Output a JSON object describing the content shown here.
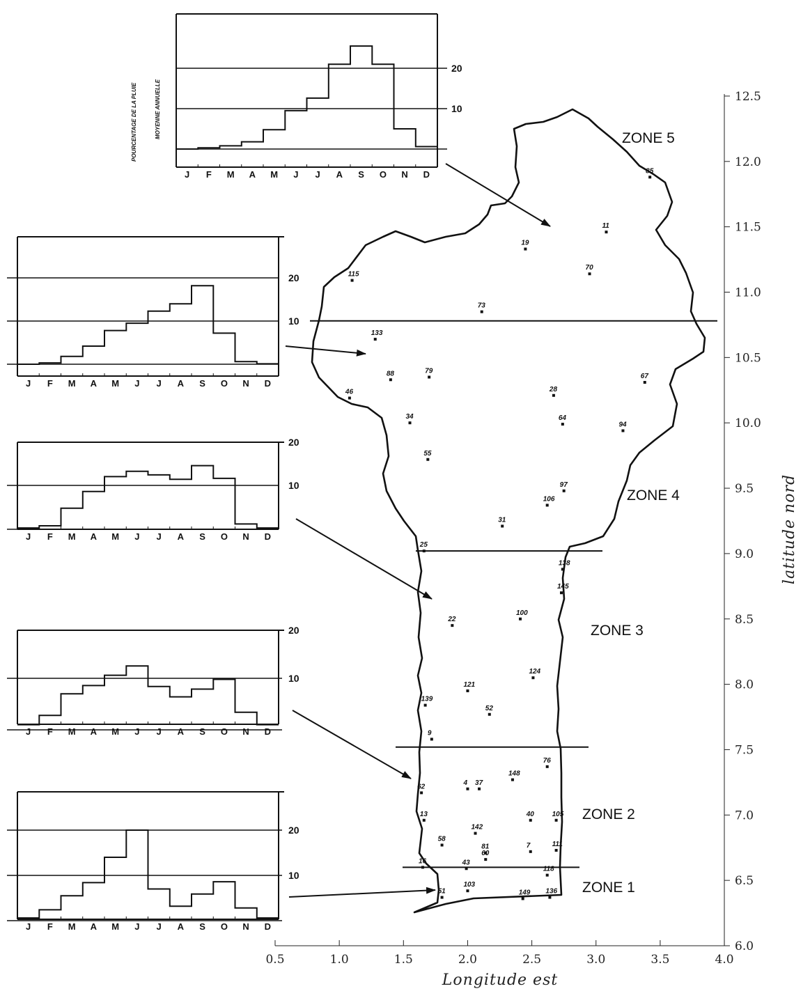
{
  "axes": {
    "x_label": "Longitude est",
    "y_label": "latitude nord",
    "x_ticks": [
      "0.5",
      "1.0",
      "1.5",
      "2.0",
      "2.5",
      "3.0",
      "3.5",
      "4.0"
    ],
    "y_ticks": [
      "6.0",
      "6.5",
      "7.0",
      "7.5",
      "8.0",
      "8.5",
      "9.0",
      "9.5",
      "10.0",
      "10.5",
      "11.0",
      "11.5",
      "12.0",
      "12.5"
    ]
  },
  "zones": [
    {
      "label": "ZONE 5"
    },
    {
      "label": "ZONE 4"
    },
    {
      "label": "ZONE 3"
    },
    {
      "label": "ZONE 2"
    },
    {
      "label": "ZONE 1"
    }
  ],
  "zone_boundaries_lat": [
    10.78,
    9.02,
    7.52,
    6.6
  ],
  "stations": [
    {
      "id": "85",
      "lon": 3.42,
      "lat": 11.88
    },
    {
      "id": "11",
      "lon": 3.08,
      "lat": 11.46
    },
    {
      "id": "19",
      "lon": 2.45,
      "lat": 11.33
    },
    {
      "id": "70",
      "lon": 2.95,
      "lat": 11.14
    },
    {
      "id": "115",
      "lon": 1.1,
      "lat": 11.09
    },
    {
      "id": "73",
      "lon": 2.11,
      "lat": 10.85
    },
    {
      "id": "133",
      "lon": 1.28,
      "lat": 10.64
    },
    {
      "id": "88",
      "lon": 1.4,
      "lat": 10.33
    },
    {
      "id": "79",
      "lon": 1.7,
      "lat": 10.35
    },
    {
      "id": "67",
      "lon": 3.38,
      "lat": 10.31
    },
    {
      "id": "46",
      "lon": 1.08,
      "lat": 10.19
    },
    {
      "id": "28",
      "lon": 2.67,
      "lat": 10.21
    },
    {
      "id": "34",
      "lon": 1.55,
      "lat": 10.0
    },
    {
      "id": "64",
      "lon": 2.74,
      "lat": 9.99
    },
    {
      "id": "94",
      "lon": 3.21,
      "lat": 9.94
    },
    {
      "id": "55",
      "lon": 1.69,
      "lat": 9.72
    },
    {
      "id": "97",
      "lon": 2.75,
      "lat": 9.48
    },
    {
      "id": "106",
      "lon": 2.62,
      "lat": 9.37
    },
    {
      "id": "31",
      "lon": 2.27,
      "lat": 9.21
    },
    {
      "id": "25",
      "lon": 1.66,
      "lat": 9.02
    },
    {
      "id": "138",
      "lon": 2.74,
      "lat": 8.88
    },
    {
      "id": "145",
      "lon": 2.73,
      "lat": 8.7
    },
    {
      "id": "100",
      "lon": 2.41,
      "lat": 8.5
    },
    {
      "id": "22",
      "lon": 1.88,
      "lat": 8.45
    },
    {
      "id": "124",
      "lon": 2.51,
      "lat": 8.05
    },
    {
      "id": "121",
      "lon": 2.0,
      "lat": 7.95
    },
    {
      "id": "139",
      "lon": 1.67,
      "lat": 7.84
    },
    {
      "id": "52",
      "lon": 2.17,
      "lat": 7.77
    },
    {
      "id": "9",
      "lon": 1.72,
      "lat": 7.58
    },
    {
      "id": "76",
      "lon": 2.62,
      "lat": 7.37
    },
    {
      "id": "148",
      "lon": 2.35,
      "lat": 7.27
    },
    {
      "id": "4",
      "lon": 2.0,
      "lat": 7.2
    },
    {
      "id": "37",
      "lon": 2.09,
      "lat": 7.2
    },
    {
      "id": "62",
      "lon": 1.64,
      "lat": 7.17
    },
    {
      "id": "13",
      "lon": 1.66,
      "lat": 6.96
    },
    {
      "id": "40",
      "lon": 2.49,
      "lat": 6.96
    },
    {
      "id": "105",
      "lon": 2.69,
      "lat": 6.96
    },
    {
      "id": "142",
      "lon": 2.06,
      "lat": 6.86
    },
    {
      "id": "58",
      "lon": 1.8,
      "lat": 6.77
    },
    {
      "id": "81",
      "lon": 2.14,
      "lat": 6.71
    },
    {
      "id": "7",
      "lon": 2.49,
      "lat": 6.72
    },
    {
      "id": "111",
      "lon": 2.69,
      "lat": 6.73
    },
    {
      "id": "60",
      "lon": 2.14,
      "lat": 6.66
    },
    {
      "id": "16",
      "lon": 1.65,
      "lat": 6.6
    },
    {
      "id": "43",
      "lon": 1.99,
      "lat": 6.59
    },
    {
      "id": "118",
      "lon": 2.62,
      "lat": 6.54
    },
    {
      "id": "103",
      "lon": 2.0,
      "lat": 6.42
    },
    {
      "id": "149",
      "lon": 2.43,
      "lat": 6.36
    },
    {
      "id": "136",
      "lon": 2.64,
      "lat": 6.37
    },
    {
      "id": "51",
      "lon": 1.8,
      "lat": 6.37
    }
  ],
  "histograms": {
    "months": [
      "J",
      "F",
      "M",
      "A",
      "M",
      "J",
      "J",
      "A",
      "S",
      "O",
      "N",
      "D"
    ],
    "level_labels": [
      "10",
      "20"
    ],
    "ylabel": [
      "POURCENTAGE DE LA PLUIE",
      "MOYENNE ANNUELLE"
    ],
    "zone5": [
      0,
      0.3,
      0.8,
      1.8,
      4.8,
      9.5,
      12.6,
      21.0,
      25.5,
      21.0,
      5.0,
      0.6
    ],
    "zone4": [
      0,
      0.3,
      1.8,
      4.2,
      7.8,
      9.5,
      12.3,
      14.0,
      18.2,
      7.2,
      0.6,
      0.1
    ],
    "zone3": [
      0.3,
      0.8,
      4.8,
      8.6,
      12.0,
      13.2,
      12.4,
      11.4,
      14.5,
      11.6,
      1.2,
      0.3
    ],
    "zone2": [
      1.0,
      2.8,
      7.0,
      8.6,
      10.6,
      12.4,
      8.4,
      6.4,
      7.9,
      9.8,
      3.4,
      1.0
    ],
    "zone1": [
      0.6,
      2.4,
      5.5,
      8.4,
      14.0,
      20.0,
      7.0,
      3.2,
      5.9,
      8.6,
      2.8,
      0.6
    ]
  }
}
